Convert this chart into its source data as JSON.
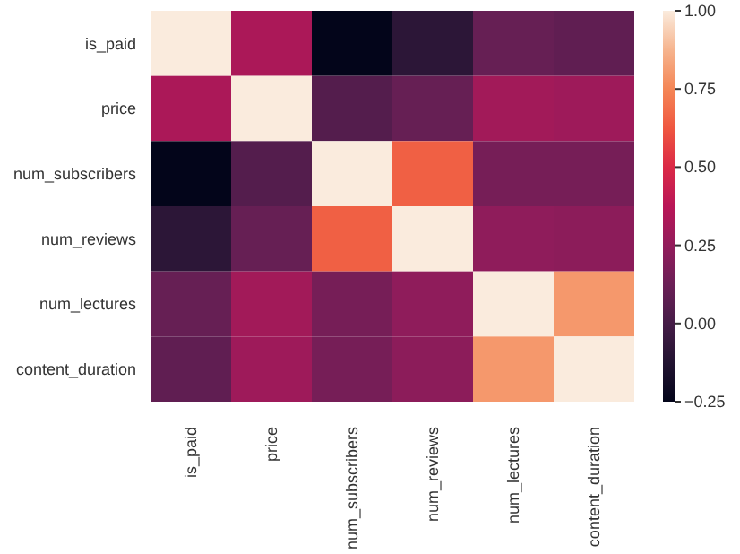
{
  "chart_data": {
    "type": "heatmap",
    "categories": [
      "is_paid",
      "price",
      "num_subscribers",
      "num_reviews",
      "num_lectures",
      "content_duration"
    ],
    "y_categories": [
      "is_paid",
      "price",
      "num_subscribers",
      "num_reviews",
      "num_lectures",
      "content_duration"
    ],
    "cells": [
      [
        1,
        0.33,
        -0.25,
        -0.09,
        0.11,
        0.09
      ],
      [
        0.33,
        1,
        0.05,
        0.11,
        0.3,
        0.29
      ],
      [
        -0.25,
        0.05,
        1,
        0.65,
        0.16,
        0.16
      ],
      [
        -0.09,
        0.11,
        0.65,
        1,
        0.24,
        0.23
      ],
      [
        0.11,
        0.3,
        0.16,
        0.24,
        1,
        0.8
      ],
      [
        0.09,
        0.29,
        0.16,
        0.23,
        0.8,
        1
      ]
    ],
    "clim": [
      -0.25,
      1
    ],
    "cticks": [
      {
        "value": -0.25,
        "label": "−0.25"
      },
      {
        "value": 0,
        "label": "0.00"
      },
      {
        "value": 0.25,
        "label": "0.25"
      },
      {
        "value": 0.5,
        "label": "0.50"
      },
      {
        "value": 0.75,
        "label": "0.75"
      },
      {
        "value": 1,
        "label": "1.00"
      }
    ]
  }
}
